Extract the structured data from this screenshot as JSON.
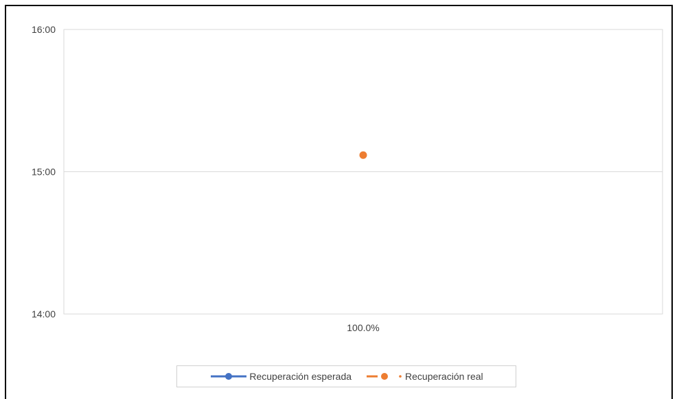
{
  "chart_data": {
    "type": "line",
    "categories": [
      "100.0%"
    ],
    "y_tick_labels": [
      "14:00",
      "15:00",
      "16:00"
    ],
    "ylim": [
      "14:00",
      "16:00"
    ],
    "grid": true,
    "legend_position": "bottom",
    "series": [
      {
        "name": "Recuperación esperada",
        "values": [
          null
        ],
        "color": "#4472C4",
        "line_style": "solid"
      },
      {
        "name": "Recuperación real",
        "values": [
          "15:07"
        ],
        "color": "#ED7D31",
        "line_style": "dashed"
      }
    ]
  }
}
